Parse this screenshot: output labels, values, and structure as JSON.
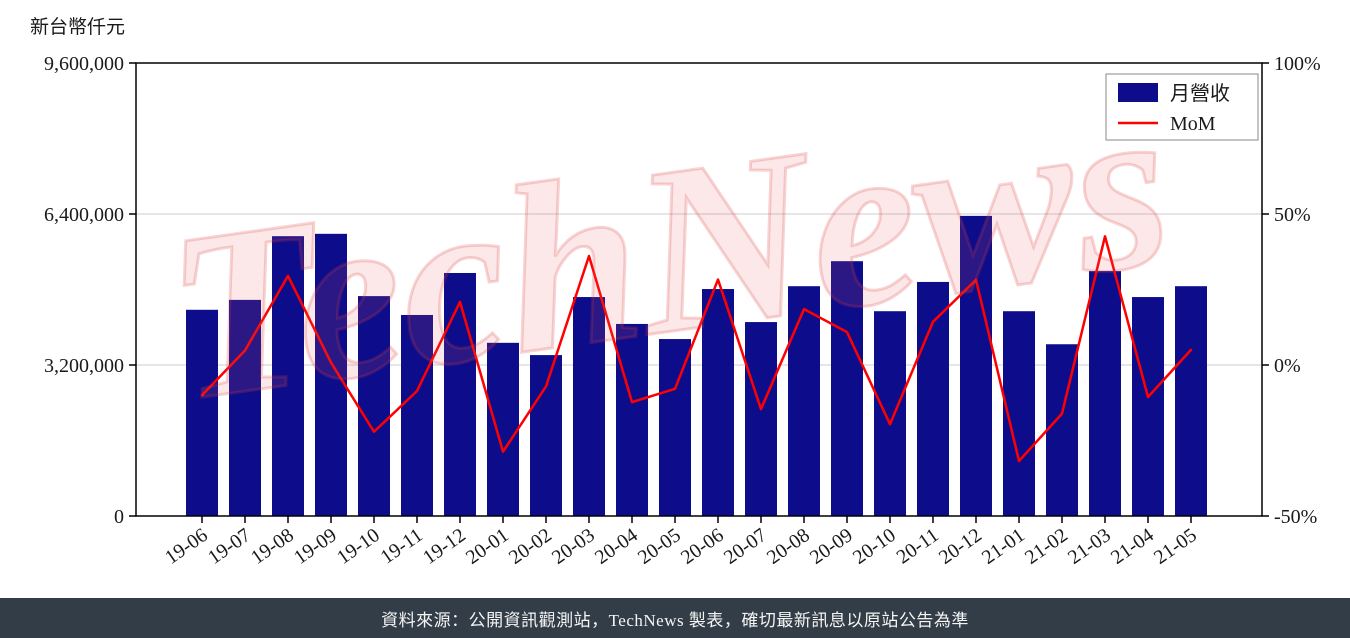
{
  "page": {
    "background": "#ffffff"
  },
  "footer": {
    "text": "資料來源：公開資訊觀測站，TechNews 製表，確切最新訊息以原站公告為準",
    "background": "#333d47",
    "text_color": "#f5f5f5"
  },
  "chart_data": {
    "type": "bar",
    "combo": "bar+line",
    "unit_label": "新台幣仟元",
    "watermark": "TechNews",
    "grid": "horizontal",
    "legend_position": "top-right",
    "categories": [
      "19-06",
      "19-07",
      "19-08",
      "19-09",
      "19-10",
      "19-11",
      "19-12",
      "20-01",
      "20-02",
      "20-03",
      "20-04",
      "20-05",
      "20-06",
      "20-07",
      "20-08",
      "20-09",
      "20-10",
      "20-11",
      "20-12",
      "21-01",
      "21-02",
      "21-03",
      "21-04",
      "21-05"
    ],
    "series": [
      {
        "name": "月營收",
        "type": "bar",
        "axis": "left",
        "color": "#0d0d8c",
        "values": [
          4370000,
          4580000,
          5930000,
          5980000,
          4660000,
          4260000,
          5150000,
          3670000,
          3410000,
          4640000,
          4070000,
          3750000,
          4810000,
          4110000,
          4870000,
          5400000,
          4340000,
          4960000,
          6360000,
          4340000,
          3640000,
          5190000,
          4640000,
          4870000
        ]
      },
      {
        "name": "MoM",
        "type": "line",
        "axis": "right",
        "color": "#ff0000",
        "values": [
          -10.0,
          4.8,
          29.5,
          0.8,
          -22.1,
          -8.6,
          20.9,
          -28.7,
          -7.1,
          36.1,
          -12.3,
          -7.9,
          28.3,
          -14.6,
          18.5,
          10.9,
          -19.6,
          14.3,
          28.2,
          -31.8,
          -16.1,
          42.6,
          -10.6,
          5.0
        ]
      }
    ],
    "left_axis": {
      "min": 0,
      "max": 9600000,
      "tick_values": [
        0,
        3200000,
        6400000,
        9600000
      ],
      "tick_labels": [
        "0",
        "3,200,000",
        "6,400,000",
        "9,600,000"
      ]
    },
    "right_axis": {
      "min": -50,
      "max": 100,
      "tick_values": [
        -50,
        0,
        50,
        100
      ],
      "tick_labels": [
        "-50%",
        "0%",
        "50%",
        "100%"
      ]
    }
  }
}
